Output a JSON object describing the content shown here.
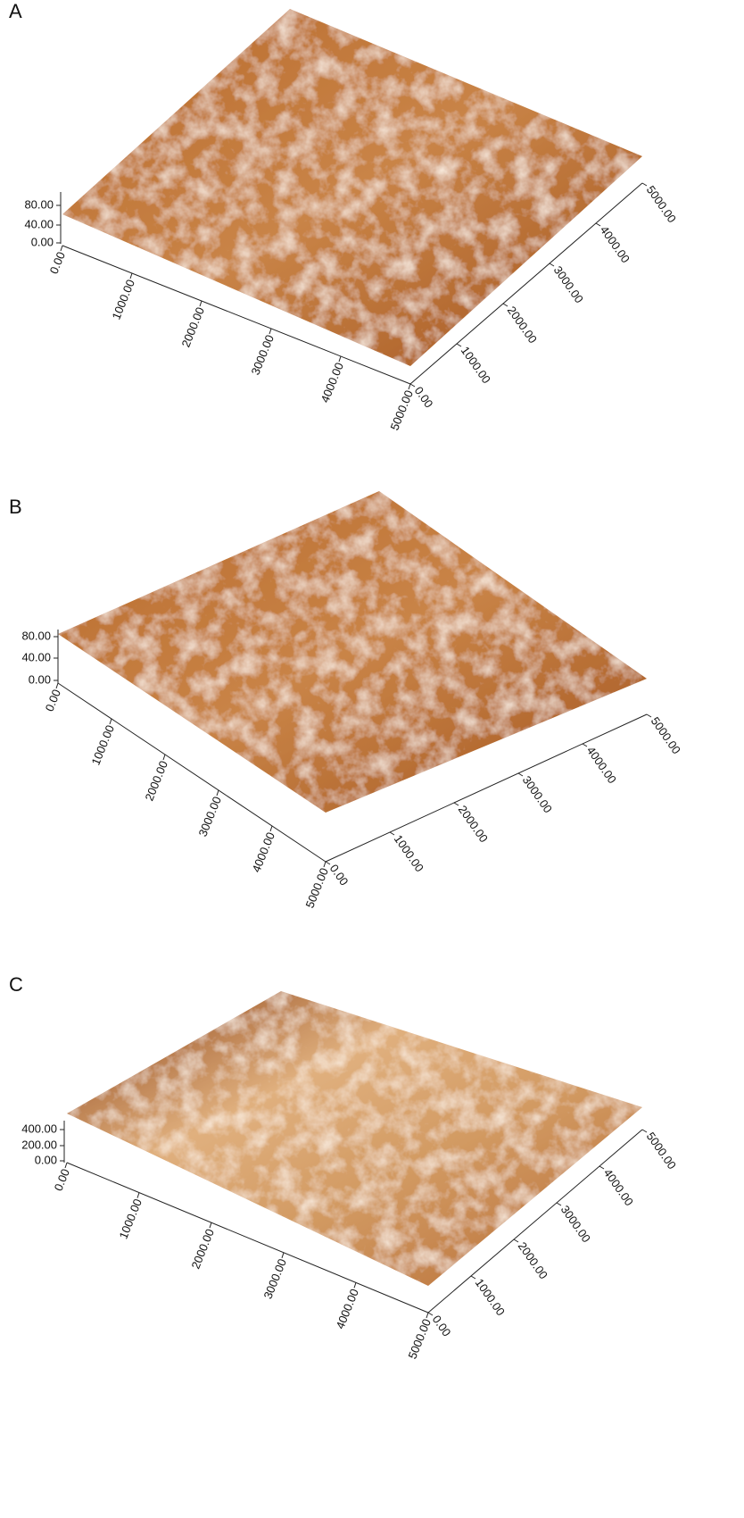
{
  "panels": [
    {
      "label": "A",
      "z_ticks": [
        "0.00",
        "40.00",
        "80.00"
      ],
      "x_ticks": [
        "0.00",
        "1000.00",
        "2000.00",
        "3000.00",
        "4000.00",
        "5000.00"
      ],
      "y_ticks": [
        "0.00",
        "1000.00",
        "2000.00",
        "3000.00",
        "4000.00",
        "5000.00"
      ]
    },
    {
      "label": "B",
      "z_ticks": [
        "0.00",
        "40.00",
        "80.00"
      ],
      "x_ticks": [
        "0.00",
        "1000.00",
        "2000.00",
        "3000.00",
        "4000.00",
        "5000.00"
      ],
      "y_ticks": [
        "0.00",
        "1000.00",
        "2000.00",
        "3000.00",
        "4000.00",
        "5000.00"
      ]
    },
    {
      "label": "C",
      "z_ticks": [
        "0.00",
        "200.00",
        "400.00"
      ],
      "x_ticks": [
        "0.00",
        "1000.00",
        "2000.00",
        "3000.00",
        "4000.00",
        "5000.00"
      ],
      "y_ticks": [
        "0.00",
        "1000.00",
        "2000.00",
        "3000.00",
        "4000.00",
        "5000.00"
      ]
    }
  ]
}
